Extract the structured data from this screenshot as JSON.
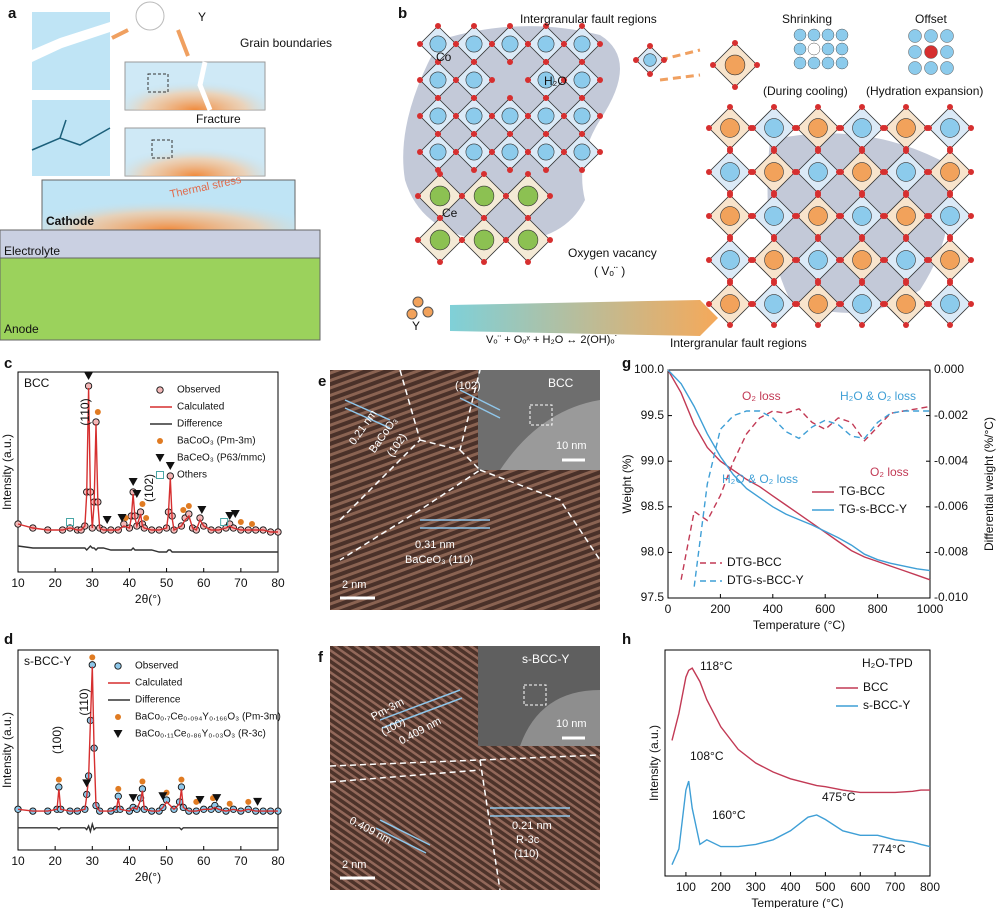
{
  "panel_a": {
    "letter": "a",
    "ion": "Y",
    "grain": "Grain boundaries",
    "fracture": "Fracture",
    "stress": "Thermal stress",
    "cathode": "Cathode",
    "electrolyte": "Electrolyte",
    "anode": "Anode"
  },
  "panel_b": {
    "letter": "b",
    "fault_top": "Intergranular fault regions",
    "co": "Co",
    "water": "H₂O",
    "ce": "Ce",
    "vacancy": "Oxygen vacancy",
    "vacancy_symbol": "( Vₒ¨ )",
    "shrinking": "Shrinking",
    "offset": "Offset",
    "cooling": "(During cooling)",
    "hydration": "(Hydration expansion)",
    "ion": "Y",
    "equation": "Vₒ¨ + Oₒˣ + H₂O ↔ 2(OH)ₒ˙",
    "fault_bottom": "Intergranular fault regions"
  },
  "panel_e": {
    "letter": "e",
    "phase": "BCC",
    "d1": "0.21 nm",
    "d1_phase": "BaCoO₃",
    "d1_plane": "(102)",
    "plane_2": "(102)",
    "d2": "0.31 nm",
    "d2_phase": "BaCeO₃ (110)",
    "scale": "2 nm",
    "inset_scale": "10 nm"
  },
  "panel_f": {
    "letter": "f",
    "phase": "s-BCC-Y",
    "group": "Pm-3m",
    "plane": "(100)",
    "d1": "0.409 nm",
    "d2": "0.409 nm",
    "d3": "0.21 nm",
    "group_2": "R-3c",
    "plane_2": "(110)",
    "scale": "2 nm",
    "inset_scale": "10 nm"
  },
  "chart_data": [
    {
      "type": "line",
      "panel": "c",
      "title": "BCC",
      "xlabel": "2θ(°)",
      "ylabel": "Intensity (a.u.)",
      "xlim": [
        10,
        80
      ],
      "xticks": [
        10,
        20,
        30,
        40,
        50,
        60,
        70,
        80
      ],
      "ylim": [
        0,
        100
      ],
      "x": [
        10,
        14,
        18,
        22,
        24,
        26,
        27,
        28,
        28.5,
        29,
        29.5,
        30,
        30.5,
        31,
        31.5,
        32,
        33,
        35,
        37,
        38.5,
        40,
        40.5,
        41,
        41.5,
        42,
        43,
        43.5,
        44,
        46,
        48,
        50,
        50.5,
        51,
        51.5,
        52,
        54,
        55,
        56,
        57,
        58,
        59,
        60,
        62,
        64,
        66,
        67,
        68,
        70,
        72,
        74,
        76,
        78,
        80
      ],
      "series": [
        {
          "name": "Observed",
          "style": "circle",
          "color": "#111111",
          "fill": "#f2b8b8",
          "values": [
            24,
            22,
            21,
            21,
            22,
            21,
            21,
            23,
            40,
            93,
            40,
            22,
            35,
            75,
            35,
            22,
            21,
            21,
            21,
            24,
            22,
            28,
            40,
            28,
            23,
            30,
            24,
            22,
            21,
            21,
            22,
            30,
            48,
            28,
            21,
            23,
            27,
            29,
            22,
            21,
            27,
            23,
            21,
            21,
            22,
            24,
            22,
            21,
            21,
            21,
            21,
            20,
            20
          ]
        },
        {
          "name": "Calculated",
          "style": "line",
          "color": "#d62f2f",
          "values": [
            24,
            22,
            21,
            21,
            22,
            21,
            21,
            23,
            39,
            92,
            39,
            22,
            34,
            74,
            34,
            22,
            21,
            21,
            21,
            23,
            22,
            27,
            39,
            27,
            23,
            29,
            23,
            22,
            21,
            21,
            22,
            29,
            47,
            27,
            21,
            23,
            26,
            28,
            22,
            21,
            26,
            23,
            21,
            21,
            22,
            23,
            22,
            21,
            21,
            21,
            21,
            20,
            20
          ]
        },
        {
          "name": "Difference",
          "style": "line",
          "color": "#333333",
          "values": [
            13,
            12,
            12,
            12,
            12,
            12,
            12,
            12,
            11,
            12,
            13,
            12,
            12,
            11,
            12,
            12,
            12,
            11,
            11,
            11,
            11,
            11,
            12,
            11,
            11,
            11,
            11,
            11,
            11,
            10,
            10,
            11,
            11,
            10,
            10,
            10,
            10,
            10,
            10,
            10,
            10,
            10,
            10,
            10,
            10,
            10,
            10,
            10,
            10,
            10,
            10,
            10,
            10
          ]
        },
        {
          "name": "BaCoO₃ (Pm-3m)",
          "style": "dot",
          "color": "#e07b22",
          "x": [
            31.5,
            39,
            43.5,
            44.5,
            54.5,
            56,
            70,
            73
          ],
          "values": [
            80,
            27,
            34,
            27,
            31,
            33,
            25,
            24
          ]
        },
        {
          "name": "BaCeO₃ (P63/mmc)",
          "style": "triangle",
          "color": "#111111",
          "x": [
            29,
            34,
            38,
            41,
            42,
            51,
            59.5,
            67,
            68.5
          ],
          "values": [
            98,
            26,
            27,
            45,
            39,
            53,
            31,
            28,
            29
          ]
        },
        {
          "name": "Others",
          "style": "square",
          "color": "#4aa7a7",
          "x": [
            24,
            65.5
          ],
          "values": [
            25,
            25
          ]
        }
      ],
      "annotations": [
        "(110)",
        "(102)"
      ]
    },
    {
      "type": "line",
      "panel": "d",
      "title": "s-BCC-Y",
      "xlabel": "2θ(°)",
      "ylabel": "Intensity (a.u.)",
      "xlim": [
        10,
        80
      ],
      "xticks": [
        10,
        20,
        30,
        40,
        50,
        60,
        70,
        80
      ],
      "ylim": [
        0,
        108
      ],
      "x": [
        10,
        14,
        18,
        20.5,
        21,
        21.5,
        24,
        26,
        28,
        28.5,
        29,
        29.5,
        30,
        30.5,
        31,
        32,
        35,
        36.5,
        37,
        37.5,
        40,
        41,
        42,
        43,
        43.5,
        44,
        46,
        48,
        49,
        50,
        52,
        53.5,
        54,
        54.5,
        56,
        58,
        60,
        62,
        63,
        64,
        66,
        68,
        70,
        72,
        74,
        76,
        78,
        80
      ],
      "series": [
        {
          "name": "Observed",
          "style": "circle",
          "color": "#111111",
          "fill": "#8ec8ea",
          "values": [
            22,
            21,
            21,
            22,
            34,
            22,
            21,
            21,
            22,
            30,
            40,
            70,
            100,
            55,
            24,
            21,
            21,
            22,
            29,
            22,
            21,
            23,
            22,
            28,
            33,
            22,
            21,
            21,
            23,
            27,
            22,
            26,
            34,
            23,
            21,
            21,
            22,
            22,
            24,
            22,
            21,
            22,
            21,
            22,
            21,
            21,
            21,
            21
          ]
        },
        {
          "name": "Calculated",
          "style": "line",
          "color": "#d62f2f",
          "values": [
            22,
            21,
            21,
            22,
            33,
            22,
            21,
            21,
            22,
            29,
            39,
            69,
            99,
            54,
            24,
            21,
            21,
            22,
            28,
            22,
            21,
            23,
            22,
            27,
            32,
            22,
            21,
            21,
            23,
            26,
            22,
            25,
            33,
            23,
            21,
            21,
            22,
            22,
            23,
            22,
            21,
            22,
            21,
            22,
            21,
            21,
            21,
            21
          ]
        },
        {
          "name": "Difference",
          "style": "line",
          "color": "#333333",
          "values": [
            12,
            12,
            12,
            12,
            11,
            12,
            12,
            12,
            12,
            11,
            13,
            10,
            14,
            11,
            12,
            12,
            12,
            12,
            12,
            12,
            12,
            12,
            12,
            12,
            12,
            12,
            12,
            12,
            12,
            12,
            12,
            12,
            11,
            12,
            12,
            12,
            12,
            12,
            12,
            12,
            12,
            12,
            12,
            12,
            12,
            12,
            12,
            12
          ]
        },
        {
          "name": "BaCo₀.₇Ce₀.₀₉₄Y₀.₁₆₆O₃ (Pm-3m)",
          "style": "dot",
          "color": "#e07b22",
          "x": [
            21,
            30,
            37,
            43.5,
            50,
            54,
            58,
            62.5,
            67,
            72
          ],
          "values": [
            38,
            104,
            33,
            37,
            31,
            38,
            26,
            28,
            25,
            26
          ]
        },
        {
          "name": "BaCo₀.₁₁Ce₀.₈₆Y₀.₀₃O₃ (R-3c)",
          "style": "triangle",
          "color": "#111111",
          "x": [
            28.5,
            41,
            49,
            59,
            63.5,
            74.5
          ],
          "values": [
            36,
            28,
            29,
            27,
            28,
            26
          ]
        }
      ],
      "annotations": [
        "(100)",
        "(110)"
      ]
    },
    {
      "type": "line",
      "panel": "g",
      "xlabel": "Temperature (°C)",
      "ylabel": "Weight (%)",
      "y2label": "Differential weight (%/°C)",
      "xlim": [
        0,
        1000
      ],
      "xticks": [
        0,
        200,
        400,
        600,
        800,
        1000
      ],
      "ylim": [
        97.5,
        100
      ],
      "yticks": [
        {
          "value": 100,
          "label": "100.0"
        },
        99.5,
        {
          "value": 99,
          "label": "99.0"
        },
        98.5,
        {
          "value": 98,
          "label": "98.0"
        },
        97.5
      ],
      "y2lim": [
        -0.01,
        0
      ],
      "y2ticks": [
        {
          "value": 0,
          "label": "0.000"
        },
        -0.002,
        -0.004,
        -0.006,
        -0.008,
        {
          "value": -0.01,
          "label": "-0.010"
        }
      ],
      "x": [
        0,
        50,
        100,
        150,
        200,
        250,
        300,
        350,
        400,
        450,
        500,
        550,
        600,
        650,
        700,
        750,
        800,
        850,
        900,
        950,
        1000
      ],
      "series": [
        {
          "name": "TG-BCC",
          "style": "line",
          "color": "#c23a55",
          "values": [
            100,
            99.75,
            99.4,
            99.15,
            99.0,
            98.9,
            98.8,
            98.72,
            98.62,
            98.52,
            98.42,
            98.32,
            98.22,
            98.12,
            98.02,
            97.95,
            97.9,
            97.85,
            97.8,
            97.75,
            97.7
          ]
        },
        {
          "name": "TG-s-BCC-Y",
          "style": "line",
          "color": "#3f9fd6",
          "values": [
            100,
            99.85,
            99.6,
            99.3,
            99.05,
            98.85,
            98.7,
            98.6,
            98.5,
            98.42,
            98.36,
            98.3,
            98.23,
            98.16,
            98.08,
            97.98,
            97.92,
            97.88,
            97.85,
            97.82,
            97.8
          ]
        },
        {
          "name": "DTG-BCC",
          "style": "dashed",
          "axis": "y2",
          "color": "#c23a55",
          "values": [
            null,
            -0.0092,
            -0.0062,
            -0.0066,
            -0.0055,
            -0.004,
            -0.0028,
            -0.0021,
            -0.0018,
            -0.0019,
            -0.0017,
            -0.0023,
            -0.0026,
            -0.0021,
            -0.0023,
            -0.0031,
            -0.0025,
            -0.0019,
            -0.0018,
            -0.0017,
            -0.0016
          ]
        },
        {
          "name": "DTG-s-BCC-Y",
          "style": "dashed",
          "axis": "y2",
          "color": "#3f9fd6",
          "values": [
            null,
            null,
            -0.0095,
            -0.005,
            -0.0026,
            -0.002,
            -0.0018,
            -0.0018,
            -0.0021,
            -0.0027,
            -0.003,
            -0.0025,
            -0.0022,
            -0.0024,
            -0.0029,
            -0.003,
            -0.0023,
            -0.0019,
            -0.0018,
            -0.0018,
            -0.0018
          ]
        }
      ],
      "annotations": [
        {
          "text": "O₂ loss",
          "color": "#c23a55"
        },
        {
          "text": "H₂O & O₂ loss",
          "color": "#3f9fd6"
        },
        {
          "text": "H₂O & O₂ loss",
          "color": "#3f9fd6"
        },
        {
          "text": "O₂ loss",
          "color": "#c23a55"
        }
      ]
    },
    {
      "type": "line",
      "panel": "h",
      "title": "H₂O-TPD",
      "xlabel": "Temperature (°C)",
      "ylabel": "Intensity (a.u.)",
      "xlim": [
        40,
        800
      ],
      "xticks": [
        100,
        200,
        300,
        400,
        500,
        600,
        700,
        800
      ],
      "ylim": [
        0,
        100
      ],
      "x": [
        60,
        80,
        100,
        108,
        118,
        140,
        160,
        200,
        250,
        300,
        350,
        400,
        450,
        475,
        500,
        550,
        600,
        650,
        700,
        750,
        774,
        800
      ],
      "series": [
        {
          "name": "BCC",
          "style": "line",
          "color": "#c23a55",
          "values": [
            60,
            72,
            88,
            91,
            92,
            86,
            78,
            66,
            56,
            50,
            46,
            43,
            41,
            40,
            39.5,
            38,
            37,
            37,
            37,
            37.5,
            38,
            38
          ]
        },
        {
          "name": "s-BCC-Y",
          "style": "line",
          "color": "#3f9fd6",
          "values": [
            5,
            12,
            38,
            42,
            30,
            14,
            16,
            13,
            13,
            14,
            16,
            20,
            26,
            27,
            25,
            20,
            18,
            18,
            16,
            15,
            14,
            13
          ]
        }
      ],
      "annotations": [
        "118°C",
        "108°C",
        "160°C",
        "475°C",
        "774°C"
      ]
    }
  ]
}
